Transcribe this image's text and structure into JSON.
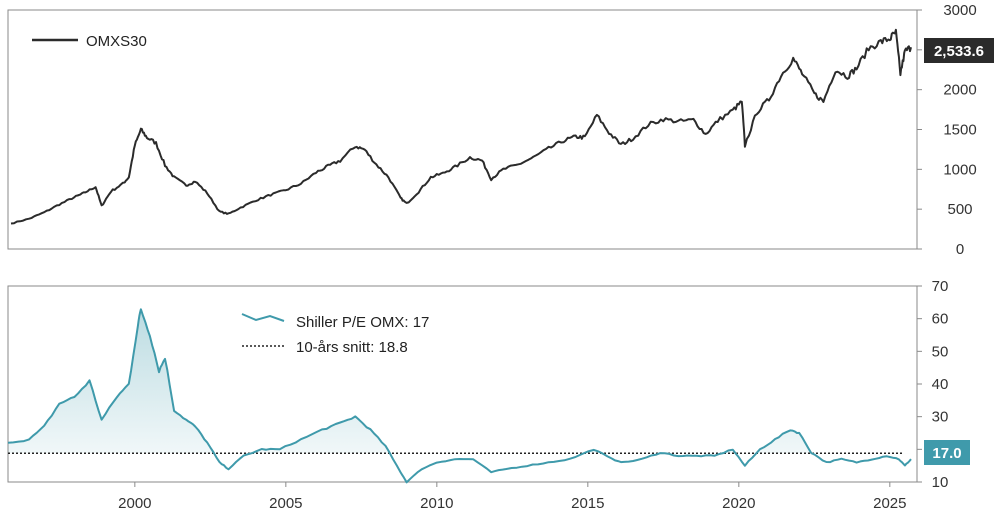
{
  "chart_data": [
    {
      "type": "line",
      "title": "",
      "xlabel": "",
      "ylabel": "",
      "ylim": [
        0,
        3000
      ],
      "xlim": [
        1995.8,
        2025.9
      ],
      "y_ticks": [
        "0",
        "500",
        "1000",
        "1500",
        "2000",
        "2500",
        "3000"
      ],
      "grid": false,
      "legend": {
        "placement": "top-left"
      },
      "last_value_label": "2,533.6",
      "series": [
        {
          "name": "OMXS30",
          "color": "#2b2b2b",
          "points": [
            [
              1995.9,
              320
            ],
            [
              1996.5,
              380
            ],
            [
              1997.0,
              460
            ],
            [
              1997.5,
              560
            ],
            [
              1998.0,
              650
            ],
            [
              1998.3,
              700
            ],
            [
              1998.7,
              780
            ],
            [
              1998.9,
              540
            ],
            [
              1999.2,
              720
            ],
            [
              1999.6,
              820
            ],
            [
              1999.8,
              900
            ],
            [
              2000.0,
              1300
            ],
            [
              2000.2,
              1500
            ],
            [
              2000.4,
              1400
            ],
            [
              2000.7,
              1330
            ],
            [
              2001.0,
              1050
            ],
            [
              2001.3,
              900
            ],
            [
              2001.7,
              800
            ],
            [
              2002.0,
              850
            ],
            [
              2002.4,
              700
            ],
            [
              2002.8,
              470
            ],
            [
              2003.1,
              440
            ],
            [
              2003.5,
              520
            ],
            [
              2004.0,
              610
            ],
            [
              2004.5,
              680
            ],
            [
              2005.0,
              740
            ],
            [
              2005.5,
              820
            ],
            [
              2006.0,
              960
            ],
            [
              2006.4,
              1040
            ],
            [
              2006.8,
              1110
            ],
            [
              2007.3,
              1290
            ],
            [
              2007.6,
              1250
            ],
            [
              2008.0,
              1060
            ],
            [
              2008.4,
              900
            ],
            [
              2008.8,
              640
            ],
            [
              2009.0,
              570
            ],
            [
              2009.4,
              720
            ],
            [
              2009.8,
              900
            ],
            [
              2010.2,
              950
            ],
            [
              2010.6,
              1030
            ],
            [
              2011.1,
              1150
            ],
            [
              2011.5,
              1110
            ],
            [
              2011.8,
              880
            ],
            [
              2012.2,
              1000
            ],
            [
              2012.7,
              1060
            ],
            [
              2013.2,
              1150
            ],
            [
              2013.7,
              1260
            ],
            [
              2014.2,
              1360
            ],
            [
              2014.6,
              1410
            ],
            [
              2014.9,
              1400
            ],
            [
              2015.3,
              1680
            ],
            [
              2015.7,
              1460
            ],
            [
              2016.1,
              1310
            ],
            [
              2016.5,
              1390
            ],
            [
              2017.0,
              1560
            ],
            [
              2017.5,
              1630
            ],
            [
              2018.0,
              1600
            ],
            [
              2018.5,
              1620
            ],
            [
              2018.9,
              1440
            ],
            [
              2019.3,
              1610
            ],
            [
              2019.8,
              1740
            ],
            [
              2020.1,
              1850
            ],
            [
              2020.2,
              1300
            ],
            [
              2020.6,
              1720
            ],
            [
              2021.0,
              1880
            ],
            [
              2021.4,
              2180
            ],
            [
              2021.8,
              2390
            ],
            [
              2022.1,
              2200
            ],
            [
              2022.5,
              1950
            ],
            [
              2022.8,
              1850
            ],
            [
              2023.2,
              2250
            ],
            [
              2023.6,
              2170
            ],
            [
              2023.9,
              2270
            ],
            [
              2024.3,
              2520
            ],
            [
              2024.7,
              2600
            ],
            [
              2025.0,
              2640
            ],
            [
              2025.2,
              2720
            ],
            [
              2025.35,
              2200
            ],
            [
              2025.5,
              2480
            ],
            [
              2025.7,
              2533.6
            ]
          ]
        }
      ]
    },
    {
      "type": "area",
      "title": "",
      "xlabel": "",
      "ylabel": "",
      "ylim": [
        10,
        70
      ],
      "xlim": [
        1995.8,
        2025.9
      ],
      "y_ticks": [
        "10",
        "20",
        "30",
        "40",
        "50",
        "60",
        "70"
      ],
      "x_ticks": [
        "2000",
        "2005",
        "2010",
        "2015",
        "2020",
        "2025"
      ],
      "grid": false,
      "legend": {
        "placement": "top-center"
      },
      "last_value_label": "17.0",
      "series": [
        {
          "name": "Shiller P/E OMX: 17",
          "color": "#3f9aab",
          "points": [
            [
              1995.8,
              22
            ],
            [
              1996.5,
              23
            ],
            [
              1997.0,
              27
            ],
            [
              1997.5,
              34
            ],
            [
              1998.0,
              36
            ],
            [
              1998.5,
              41
            ],
            [
              1998.9,
              29
            ],
            [
              1999.4,
              36
            ],
            [
              1999.8,
              40
            ],
            [
              2000.1,
              58
            ],
            [
              2000.2,
              63
            ],
            [
              2000.5,
              55
            ],
            [
              2000.8,
              44
            ],
            [
              2001.0,
              48
            ],
            [
              2001.3,
              32
            ],
            [
              2001.7,
              29
            ],
            [
              2002.0,
              27
            ],
            [
              2002.4,
              22
            ],
            [
              2002.8,
              16
            ],
            [
              2003.1,
              14
            ],
            [
              2003.6,
              18
            ],
            [
              2004.2,
              20
            ],
            [
              2004.8,
              20
            ],
            [
              2005.5,
              23
            ],
            [
              2006.2,
              26
            ],
            [
              2006.8,
              28
            ],
            [
              2007.3,
              30
            ],
            [
              2007.8,
              26
            ],
            [
              2008.3,
              21
            ],
            [
              2008.8,
              13
            ],
            [
              2009.0,
              10
            ],
            [
              2009.5,
              14
            ],
            [
              2010.0,
              16
            ],
            [
              2010.6,
              17
            ],
            [
              2011.2,
              17
            ],
            [
              2011.8,
              13
            ],
            [
              2012.3,
              14
            ],
            [
              2013.0,
              15
            ],
            [
              2013.7,
              16
            ],
            [
              2014.4,
              17
            ],
            [
              2015.2,
              20
            ],
            [
              2015.8,
              17
            ],
            [
              2016.2,
              16
            ],
            [
              2016.8,
              17
            ],
            [
              2017.4,
              19
            ],
            [
              2018.0,
              18
            ],
            [
              2018.6,
              18
            ],
            [
              2019.2,
              18
            ],
            [
              2019.8,
              20
            ],
            [
              2020.2,
              15
            ],
            [
              2020.7,
              20
            ],
            [
              2021.2,
              23
            ],
            [
              2021.7,
              26
            ],
            [
              2022.0,
              25
            ],
            [
              2022.4,
              19
            ],
            [
              2022.9,
              16
            ],
            [
              2023.4,
              17
            ],
            [
              2023.9,
              16
            ],
            [
              2024.4,
              17
            ],
            [
              2024.9,
              18
            ],
            [
              2025.3,
              17
            ],
            [
              2025.5,
              15
            ],
            [
              2025.7,
              17.0
            ]
          ]
        },
        {
          "name": "10-års snitt: 18.8",
          "color": "#222222",
          "style": "dotted",
          "constant": 18.8
        }
      ]
    }
  ]
}
